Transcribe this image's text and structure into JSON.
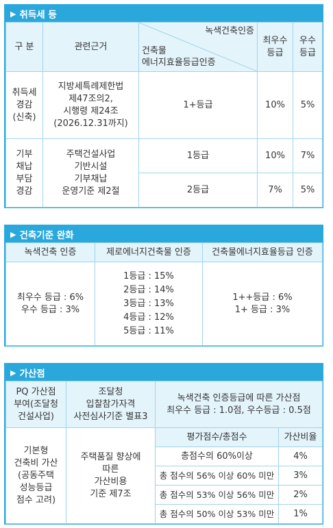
{
  "s1": {
    "title": "취득세 등",
    "h_gubun": "구 분",
    "h_basis": "관련근거",
    "h_diag_top": "녹색건축인증",
    "h_diag_bottom": "건축물\n에너지효율등급인증",
    "h_best": "최우수\n등급",
    "h_excellent": "우수\n등급",
    "r1_gubun": "취득세\n경감\n(신축)",
    "r1_basis": "지방세특례제한법\n제47조의2,\n시행령 제24조\n(2026.12.31까지)",
    "r1_grade": "1+등급",
    "r1_best": "10%",
    "r1_excellent": "5%",
    "r2_gubun": "기부\n채납\n부담\n경감",
    "r2_basis": "주택건설사업\n기반시설\n기부채납\n운영기준 제2절",
    "r2_grade1": "1등급",
    "r2_best1": "10%",
    "r2_exc1": "7%",
    "r2_grade2": "2등급",
    "r2_best2": "7%",
    "r2_exc2": "5%"
  },
  "s2": {
    "title": "건축기준 완화",
    "h1": "녹색건축 인증",
    "h2": "제로에너지건축물 인증",
    "h3": "건축물에너지효율등급 인증",
    "c1": "최우수 등급 : 6%\n우수 등급 : 3%",
    "c2": "1등급 : 15%\n2등급 : 14%\n3등급 : 13%\n4등급 : 12%\n5등급 : 11%",
    "c3": "1++등급 : 6%\n1+ 등급 : 3%"
  },
  "s3": {
    "title": "가산점",
    "h1": "PQ 가산점\n부여(조달청\n건설사업)",
    "h2": "조달청\n입찰참가자격\n사전심사기준 별표3",
    "h3": "녹색건축 인증등급에 따른 가산점\n최우수 등급 : 1.0점, 우수등급 : 0.5점",
    "c1": "기본형\n건축비 가산\n(공동주택\n성능등급\n점수 고려)",
    "c2": "주택품질 향상에\n따른\n가산비용\n기준 제7조",
    "sub_h_score": "평가점수/총점수",
    "sub_h_rate": "가산비율",
    "rows": [
      {
        "score": "총점수의 60%이상",
        "rate": "4%"
      },
      {
        "score": "총 점수의 56% 이상 60% 미만",
        "rate": "3%"
      },
      {
        "score": "총 점수의 53% 이상 56% 미만",
        "rate": "2%"
      },
      {
        "score": "총 점수의 50% 이상 53% 미만",
        "rate": "1%"
      }
    ]
  }
}
